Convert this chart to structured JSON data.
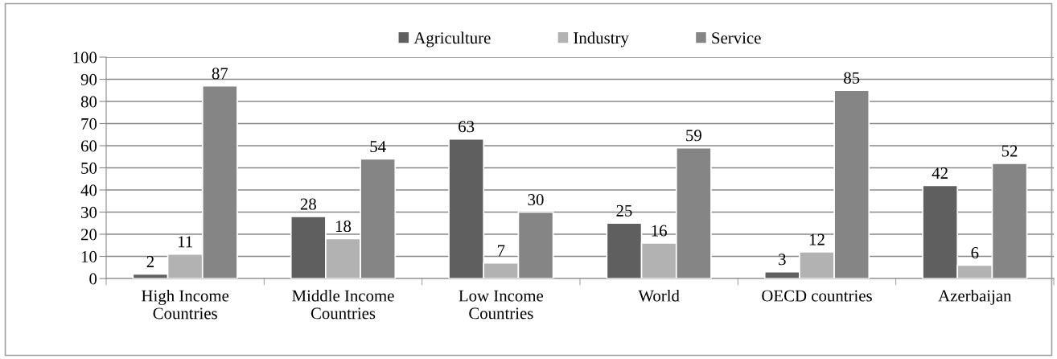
{
  "chart_data": {
    "type": "bar",
    "categories": [
      "High Income\nCountries",
      "Middle Income\nCountries",
      "Low Income\nCountries",
      "World",
      "OECD countries",
      "Azerbaijan"
    ],
    "series": [
      {
        "name": "Agriculture",
        "color": "#5f5f5f",
        "values": [
          2,
          28,
          63,
          25,
          3,
          42
        ]
      },
      {
        "name": "Industry",
        "color": "#b2b2b2",
        "values": [
          11,
          18,
          7,
          16,
          12,
          6
        ]
      },
      {
        "name": "Service",
        "color": "#858585",
        "values": [
          87,
          54,
          30,
          59,
          85,
          52
        ]
      }
    ],
    "ylim": [
      0,
      100
    ],
    "yticks": [
      0,
      10,
      20,
      30,
      40,
      50,
      60,
      70,
      80,
      90,
      100
    ],
    "grid": "y",
    "legend": "top",
    "data_labels": true
  }
}
